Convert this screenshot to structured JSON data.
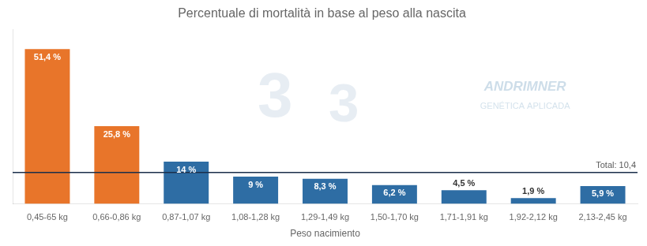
{
  "chart_data": {
    "type": "bar",
    "title": "Percentuale di mortalità in base al peso alla nascita",
    "xlabel": "Peso nacimiento",
    "categories": [
      "0,45-65 kg",
      "0,66-0,86 kg",
      "0,87-1,07 kg",
      "1,08-1,28 kg",
      "1,29-1,49 kg",
      "1,50-1,70 kg",
      "1,71-1,91 kg",
      "1,92-2,12 kg",
      "2,13-2,45 kg"
    ],
    "values": [
      51.4,
      25.8,
      14.0,
      9.0,
      8.3,
      6.2,
      4.5,
      1.9,
      5.9
    ],
    "value_labels": [
      "51,4 %",
      "25,8 %",
      "14 %",
      "9 %",
      "8,3 %",
      "6,2 %",
      "4,5 %",
      "1,9 %",
      "5,9 %"
    ],
    "data_labels": true,
    "colors": [
      "#E8752A",
      "#E8752A",
      "#2E6DA4",
      "#2E6DA4",
      "#2E6DA4",
      "#2E6DA4",
      "#2E6DA4",
      "#2E6DA4",
      "#2E6DA4"
    ],
    "ylim": [
      0,
      58
    ],
    "grid": false,
    "tick_labels": "x",
    "annotations": [
      {
        "text": "Total: 10,4",
        "y": 10.4,
        "color": "#1a2e4a"
      },
      {
        "text": "3"
      },
      {
        "text": "3"
      },
      {
        "text": "ANDRIMNER"
      },
      {
        "text": "GENÉTICA APLICADA"
      }
    ]
  }
}
